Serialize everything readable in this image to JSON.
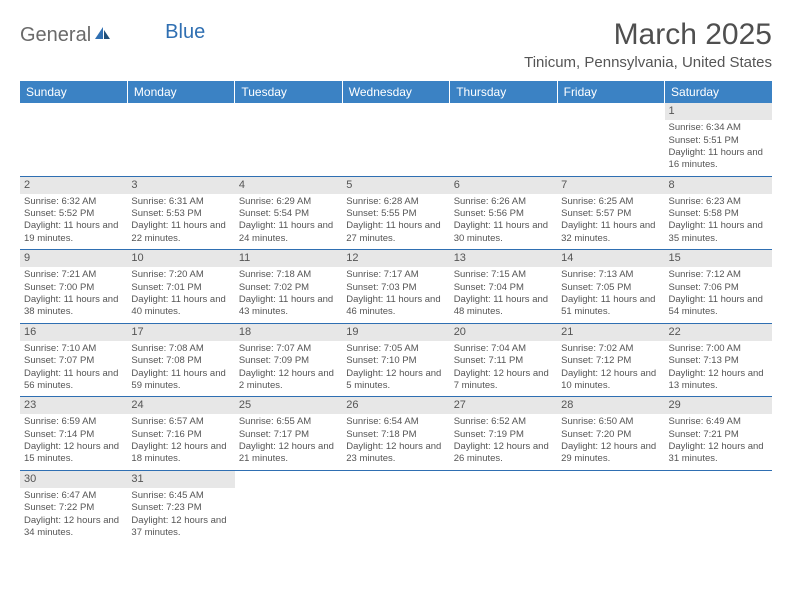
{
  "logo": {
    "part1": "General",
    "part2": "Blue"
  },
  "title": "March 2025",
  "location": "Tinicum, Pennsylvania, United States",
  "colors": {
    "header_bg": "#3b82c4",
    "header_text": "#ffffff",
    "border": "#2f6fb2",
    "daynum_bg": "#e7e7e7",
    "text": "#555555"
  },
  "weekdays": [
    "Sunday",
    "Monday",
    "Tuesday",
    "Wednesday",
    "Thursday",
    "Friday",
    "Saturday"
  ],
  "weeks": [
    [
      null,
      null,
      null,
      null,
      null,
      null,
      {
        "n": "1",
        "sr": "Sunrise: 6:34 AM",
        "ss": "Sunset: 5:51 PM",
        "dl": "Daylight: 11 hours and 16 minutes."
      }
    ],
    [
      {
        "n": "2",
        "sr": "Sunrise: 6:32 AM",
        "ss": "Sunset: 5:52 PM",
        "dl": "Daylight: 11 hours and 19 minutes."
      },
      {
        "n": "3",
        "sr": "Sunrise: 6:31 AM",
        "ss": "Sunset: 5:53 PM",
        "dl": "Daylight: 11 hours and 22 minutes."
      },
      {
        "n": "4",
        "sr": "Sunrise: 6:29 AM",
        "ss": "Sunset: 5:54 PM",
        "dl": "Daylight: 11 hours and 24 minutes."
      },
      {
        "n": "5",
        "sr": "Sunrise: 6:28 AM",
        "ss": "Sunset: 5:55 PM",
        "dl": "Daylight: 11 hours and 27 minutes."
      },
      {
        "n": "6",
        "sr": "Sunrise: 6:26 AM",
        "ss": "Sunset: 5:56 PM",
        "dl": "Daylight: 11 hours and 30 minutes."
      },
      {
        "n": "7",
        "sr": "Sunrise: 6:25 AM",
        "ss": "Sunset: 5:57 PM",
        "dl": "Daylight: 11 hours and 32 minutes."
      },
      {
        "n": "8",
        "sr": "Sunrise: 6:23 AM",
        "ss": "Sunset: 5:58 PM",
        "dl": "Daylight: 11 hours and 35 minutes."
      }
    ],
    [
      {
        "n": "9",
        "sr": "Sunrise: 7:21 AM",
        "ss": "Sunset: 7:00 PM",
        "dl": "Daylight: 11 hours and 38 minutes."
      },
      {
        "n": "10",
        "sr": "Sunrise: 7:20 AM",
        "ss": "Sunset: 7:01 PM",
        "dl": "Daylight: 11 hours and 40 minutes."
      },
      {
        "n": "11",
        "sr": "Sunrise: 7:18 AM",
        "ss": "Sunset: 7:02 PM",
        "dl": "Daylight: 11 hours and 43 minutes."
      },
      {
        "n": "12",
        "sr": "Sunrise: 7:17 AM",
        "ss": "Sunset: 7:03 PM",
        "dl": "Daylight: 11 hours and 46 minutes."
      },
      {
        "n": "13",
        "sr": "Sunrise: 7:15 AM",
        "ss": "Sunset: 7:04 PM",
        "dl": "Daylight: 11 hours and 48 minutes."
      },
      {
        "n": "14",
        "sr": "Sunrise: 7:13 AM",
        "ss": "Sunset: 7:05 PM",
        "dl": "Daylight: 11 hours and 51 minutes."
      },
      {
        "n": "15",
        "sr": "Sunrise: 7:12 AM",
        "ss": "Sunset: 7:06 PM",
        "dl": "Daylight: 11 hours and 54 minutes."
      }
    ],
    [
      {
        "n": "16",
        "sr": "Sunrise: 7:10 AM",
        "ss": "Sunset: 7:07 PM",
        "dl": "Daylight: 11 hours and 56 minutes."
      },
      {
        "n": "17",
        "sr": "Sunrise: 7:08 AM",
        "ss": "Sunset: 7:08 PM",
        "dl": "Daylight: 11 hours and 59 minutes."
      },
      {
        "n": "18",
        "sr": "Sunrise: 7:07 AM",
        "ss": "Sunset: 7:09 PM",
        "dl": "Daylight: 12 hours and 2 minutes."
      },
      {
        "n": "19",
        "sr": "Sunrise: 7:05 AM",
        "ss": "Sunset: 7:10 PM",
        "dl": "Daylight: 12 hours and 5 minutes."
      },
      {
        "n": "20",
        "sr": "Sunrise: 7:04 AM",
        "ss": "Sunset: 7:11 PM",
        "dl": "Daylight: 12 hours and 7 minutes."
      },
      {
        "n": "21",
        "sr": "Sunrise: 7:02 AM",
        "ss": "Sunset: 7:12 PM",
        "dl": "Daylight: 12 hours and 10 minutes."
      },
      {
        "n": "22",
        "sr": "Sunrise: 7:00 AM",
        "ss": "Sunset: 7:13 PM",
        "dl": "Daylight: 12 hours and 13 minutes."
      }
    ],
    [
      {
        "n": "23",
        "sr": "Sunrise: 6:59 AM",
        "ss": "Sunset: 7:14 PM",
        "dl": "Daylight: 12 hours and 15 minutes."
      },
      {
        "n": "24",
        "sr": "Sunrise: 6:57 AM",
        "ss": "Sunset: 7:16 PM",
        "dl": "Daylight: 12 hours and 18 minutes."
      },
      {
        "n": "25",
        "sr": "Sunrise: 6:55 AM",
        "ss": "Sunset: 7:17 PM",
        "dl": "Daylight: 12 hours and 21 minutes."
      },
      {
        "n": "26",
        "sr": "Sunrise: 6:54 AM",
        "ss": "Sunset: 7:18 PM",
        "dl": "Daylight: 12 hours and 23 minutes."
      },
      {
        "n": "27",
        "sr": "Sunrise: 6:52 AM",
        "ss": "Sunset: 7:19 PM",
        "dl": "Daylight: 12 hours and 26 minutes."
      },
      {
        "n": "28",
        "sr": "Sunrise: 6:50 AM",
        "ss": "Sunset: 7:20 PM",
        "dl": "Daylight: 12 hours and 29 minutes."
      },
      {
        "n": "29",
        "sr": "Sunrise: 6:49 AM",
        "ss": "Sunset: 7:21 PM",
        "dl": "Daylight: 12 hours and 31 minutes."
      }
    ],
    [
      {
        "n": "30",
        "sr": "Sunrise: 6:47 AM",
        "ss": "Sunset: 7:22 PM",
        "dl": "Daylight: 12 hours and 34 minutes."
      },
      {
        "n": "31",
        "sr": "Sunrise: 6:45 AM",
        "ss": "Sunset: 7:23 PM",
        "dl": "Daylight: 12 hours and 37 minutes."
      },
      null,
      null,
      null,
      null,
      null
    ]
  ]
}
